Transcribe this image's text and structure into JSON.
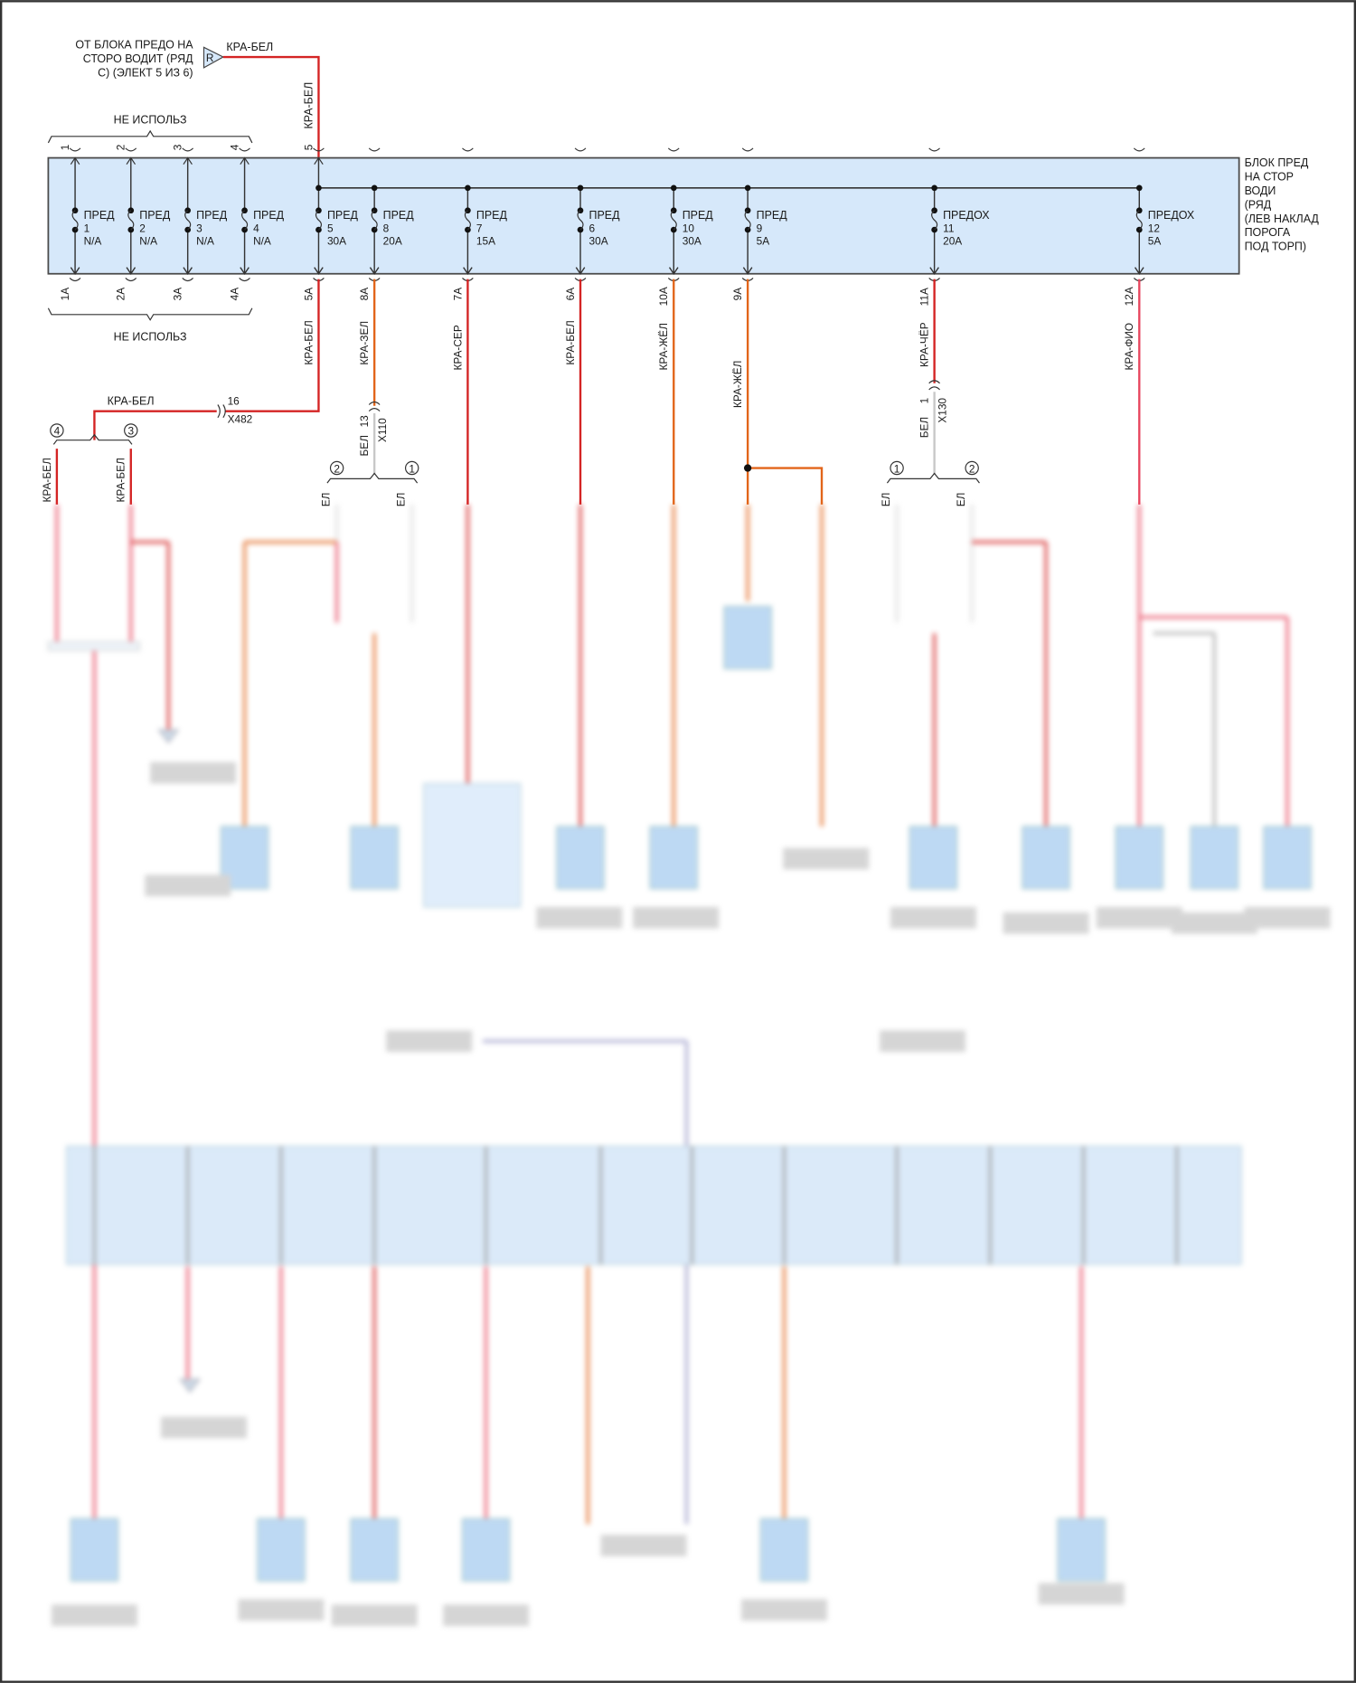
{
  "source": {
    "label": "ОТ БЛОКА ПРЕДО НА СТОРО ВОДИТ (РЯД С) (ЭЛЕКТ 5 ИЗ 6)",
    "lines": [
      "ОТ БЛОКА ПРЕДО НА",
      "СТОРО ВОДИТ (РЯД",
      "С) (ЭЛЕКТ 5 ИЗ 6)"
    ],
    "marker": "R",
    "wire": "КРА-БЕЛ"
  },
  "not_used_top": "НЕ ИСПОЛЬЗ",
  "not_used_bottom": "НЕ ИСПОЛЬЗ",
  "block_label": [
    "БЛОК ПРЕД",
    "НА СТОР",
    "ВОДИ",
    "(РЯД",
    "(ЛЕВ НАКЛАД",
    "ПОРОГА",
    "ПОД ТОРП)"
  ],
  "fuses": [
    {
      "name": "ПРЕД",
      "num": "1",
      "rating": "N/A",
      "pin_in": "1",
      "pin_out": "1A",
      "wire": ""
    },
    {
      "name": "ПРЕД",
      "num": "2",
      "rating": "N/A",
      "pin_in": "2",
      "pin_out": "2A",
      "wire": ""
    },
    {
      "name": "ПРЕД",
      "num": "3",
      "rating": "N/A",
      "pin_in": "3",
      "pin_out": "3A",
      "wire": ""
    },
    {
      "name": "ПРЕД",
      "num": "4",
      "rating": "N/A",
      "pin_in": "4",
      "pin_out": "4A",
      "wire": ""
    },
    {
      "name": "ПРЕД",
      "num": "5",
      "rating": "30A",
      "pin_in": "5",
      "pin_out": "5A",
      "wire": "КРА-БЕЛ"
    },
    {
      "name": "ПРЕД",
      "num": "8",
      "rating": "20A",
      "pin_in": "",
      "pin_out": "8A",
      "wire": "КРА-ЗЕЛ"
    },
    {
      "name": "ПРЕД",
      "num": "7",
      "rating": "15A",
      "pin_in": "",
      "pin_out": "7A",
      "wire": "КРА-СЕР"
    },
    {
      "name": "ПРЕД",
      "num": "6",
      "rating": "30A",
      "pin_in": "",
      "pin_out": "6A",
      "wire": "КРА-БЕЛ"
    },
    {
      "name": "ПРЕД",
      "num": "10",
      "rating": "30A",
      "pin_in": "",
      "pin_out": "10A",
      "wire": "КРА-ЖЁЛ"
    },
    {
      "name": "ПРЕД",
      "num": "9",
      "rating": "5A",
      "pin_in": "",
      "pin_out": "9A",
      "wire": "КРА-ЖЁЛ"
    },
    {
      "name": "ПРЕДОХ",
      "num": "11",
      "rating": "20A",
      "pin_in": "",
      "pin_out": "11A",
      "wire": "КРА-ЧЁР"
    },
    {
      "name": "ПРЕДОХ",
      "num": "12",
      "rating": "5A",
      "pin_in": "",
      "pin_out": "12A",
      "wire": "КРА-ФИО"
    }
  ],
  "input_wire": "КРА-БЕЛ",
  "splice_x482": {
    "wire": "КРА-БЕЛ",
    "pin": "16",
    "connector": "X482",
    "branch_a": "4",
    "branch_b": "3",
    "wire_a": "КРА-БЕЛ",
    "wire_b": "КРА-БЕЛ"
  },
  "connector_x110": {
    "pin": "13",
    "connector": "X110",
    "wire": "БЕЛ",
    "branch_a": "2",
    "branch_b": "1",
    "wire_a": "ЕЛ",
    "wire_b": "ЕЛ"
  },
  "connector_x130": {
    "pin": "1",
    "connector": "X130",
    "wire": "БЕЛ",
    "branch_a": "1",
    "branch_b": "2",
    "wire_a": "ЕЛ",
    "wire_b": "ЕЛ"
  },
  "colors": {
    "red": "#d42424",
    "orange": "#e2651a",
    "pink": "#e8475f",
    "block_fill": "#d6e8fa",
    "block_stroke": "#4a4a4a",
    "white_wire": "#c8c8c8"
  }
}
